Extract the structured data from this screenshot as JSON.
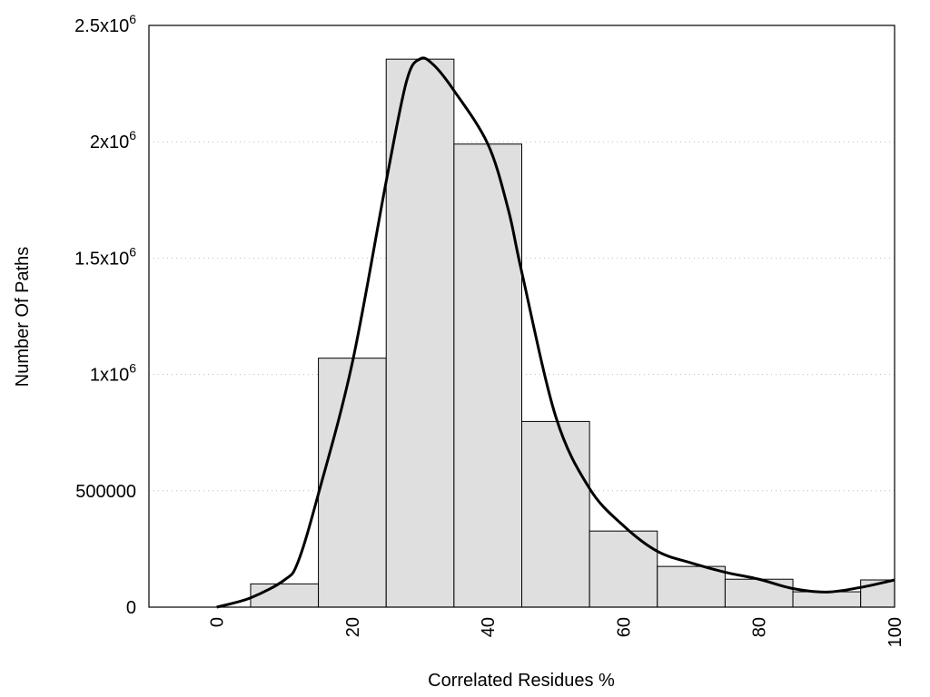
{
  "chart_data": {
    "type": "bar",
    "title": "",
    "xlabel": "Correlated Residues %",
    "ylabel": "Number Of Paths",
    "xlim": [
      -10,
      100
    ],
    "ylim": [
      0,
      2500000
    ],
    "grid": "horizontal dotted",
    "bar_width": 10,
    "x": [
      10,
      20,
      30,
      40,
      50,
      60,
      70,
      80,
      90,
      100
    ],
    "values": [
      100000,
      1070000,
      2355000,
      1990000,
      798000,
      327000,
      175000,
      120000,
      66000,
      117000
    ],
    "bar_color": "#dfdfdf",
    "curve": {
      "x": [
        0,
        5,
        10,
        12,
        15,
        20,
        25,
        28,
        30,
        32,
        35,
        40,
        43,
        45,
        50,
        55,
        60,
        65,
        70,
        75,
        80,
        85,
        90,
        95,
        100
      ],
      "y": [
        0,
        40000,
        117000,
        195000,
        487000,
        1050000,
        1830000,
        2260000,
        2356000,
        2330000,
        2220000,
        1990000,
        1710000,
        1440000,
        820000,
        510000,
        350000,
        240000,
        190000,
        150000,
        120000,
        80000,
        65000,
        85000,
        117000
      ]
    },
    "xticks": [
      {
        "v": 0,
        "label": "0"
      },
      {
        "v": 20,
        "label": "20"
      },
      {
        "v": 40,
        "label": "40"
      },
      {
        "v": 60,
        "label": "60"
      },
      {
        "v": 80,
        "label": "80"
      },
      {
        "v": 100,
        "label": "100"
      }
    ],
    "yticks": [
      {
        "v": 0,
        "label": "0",
        "exp": ""
      },
      {
        "v": 500000,
        "label": "500000",
        "exp": ""
      },
      {
        "v": 1000000,
        "label": "1x10",
        "exp": "6"
      },
      {
        "v": 1500000,
        "label": "1.5x10",
        "exp": "6"
      },
      {
        "v": 2000000,
        "label": "2x10",
        "exp": "6"
      },
      {
        "v": 2500000,
        "label": "2.5x10",
        "exp": "6"
      }
    ]
  }
}
